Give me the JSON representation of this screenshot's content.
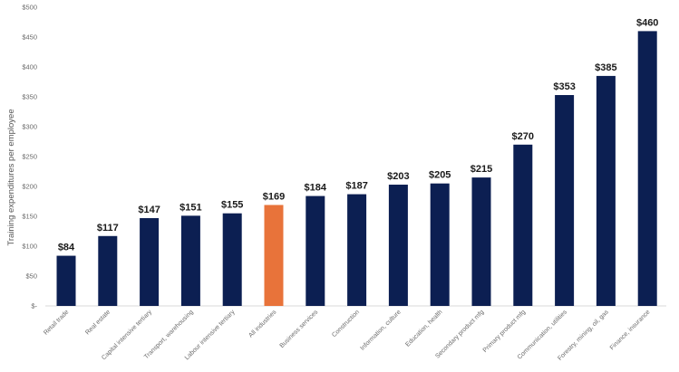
{
  "chart_data": {
    "type": "bar",
    "title": "",
    "xlabel": "",
    "ylabel": "Training expenditures per employee",
    "ylim": [
      0,
      500
    ],
    "yticks": [
      0,
      50,
      100,
      150,
      200,
      250,
      300,
      350,
      400,
      450,
      500
    ],
    "ytick_labels": [
      "$-",
      "$50",
      "$100",
      "$150",
      "$200",
      "$250",
      "$300",
      "$350",
      "$400",
      "$450",
      "$500"
    ],
    "categories": [
      "Retail trade",
      "Real estate",
      "Capital intensive tertiary",
      "Transport, warehousing",
      "Labour intensive tertiary",
      "All industries",
      "Business services",
      "Construction",
      "Information, culture",
      "Education, health",
      "Secondary product mfg",
      "Primary product mfg",
      "Communication, utilities",
      "Forestry, mining, oil, gas",
      "Finance, insurance"
    ],
    "values": [
      84,
      117,
      147,
      151,
      155,
      169,
      184,
      187,
      203,
      205,
      215,
      270,
      353,
      385,
      460
    ],
    "data_labels": [
      "$84",
      "$117",
      "$147",
      "$151",
      "$155",
      "$169",
      "$184",
      "$187",
      "$203",
      "$205",
      "$215",
      "$270",
      "$353",
      "$385",
      "$460"
    ],
    "highlight_category": "All industries",
    "colors": {
      "bar": "#0c1f52",
      "highlight": "#e8733a"
    },
    "grid": false,
    "legend": "none"
  }
}
